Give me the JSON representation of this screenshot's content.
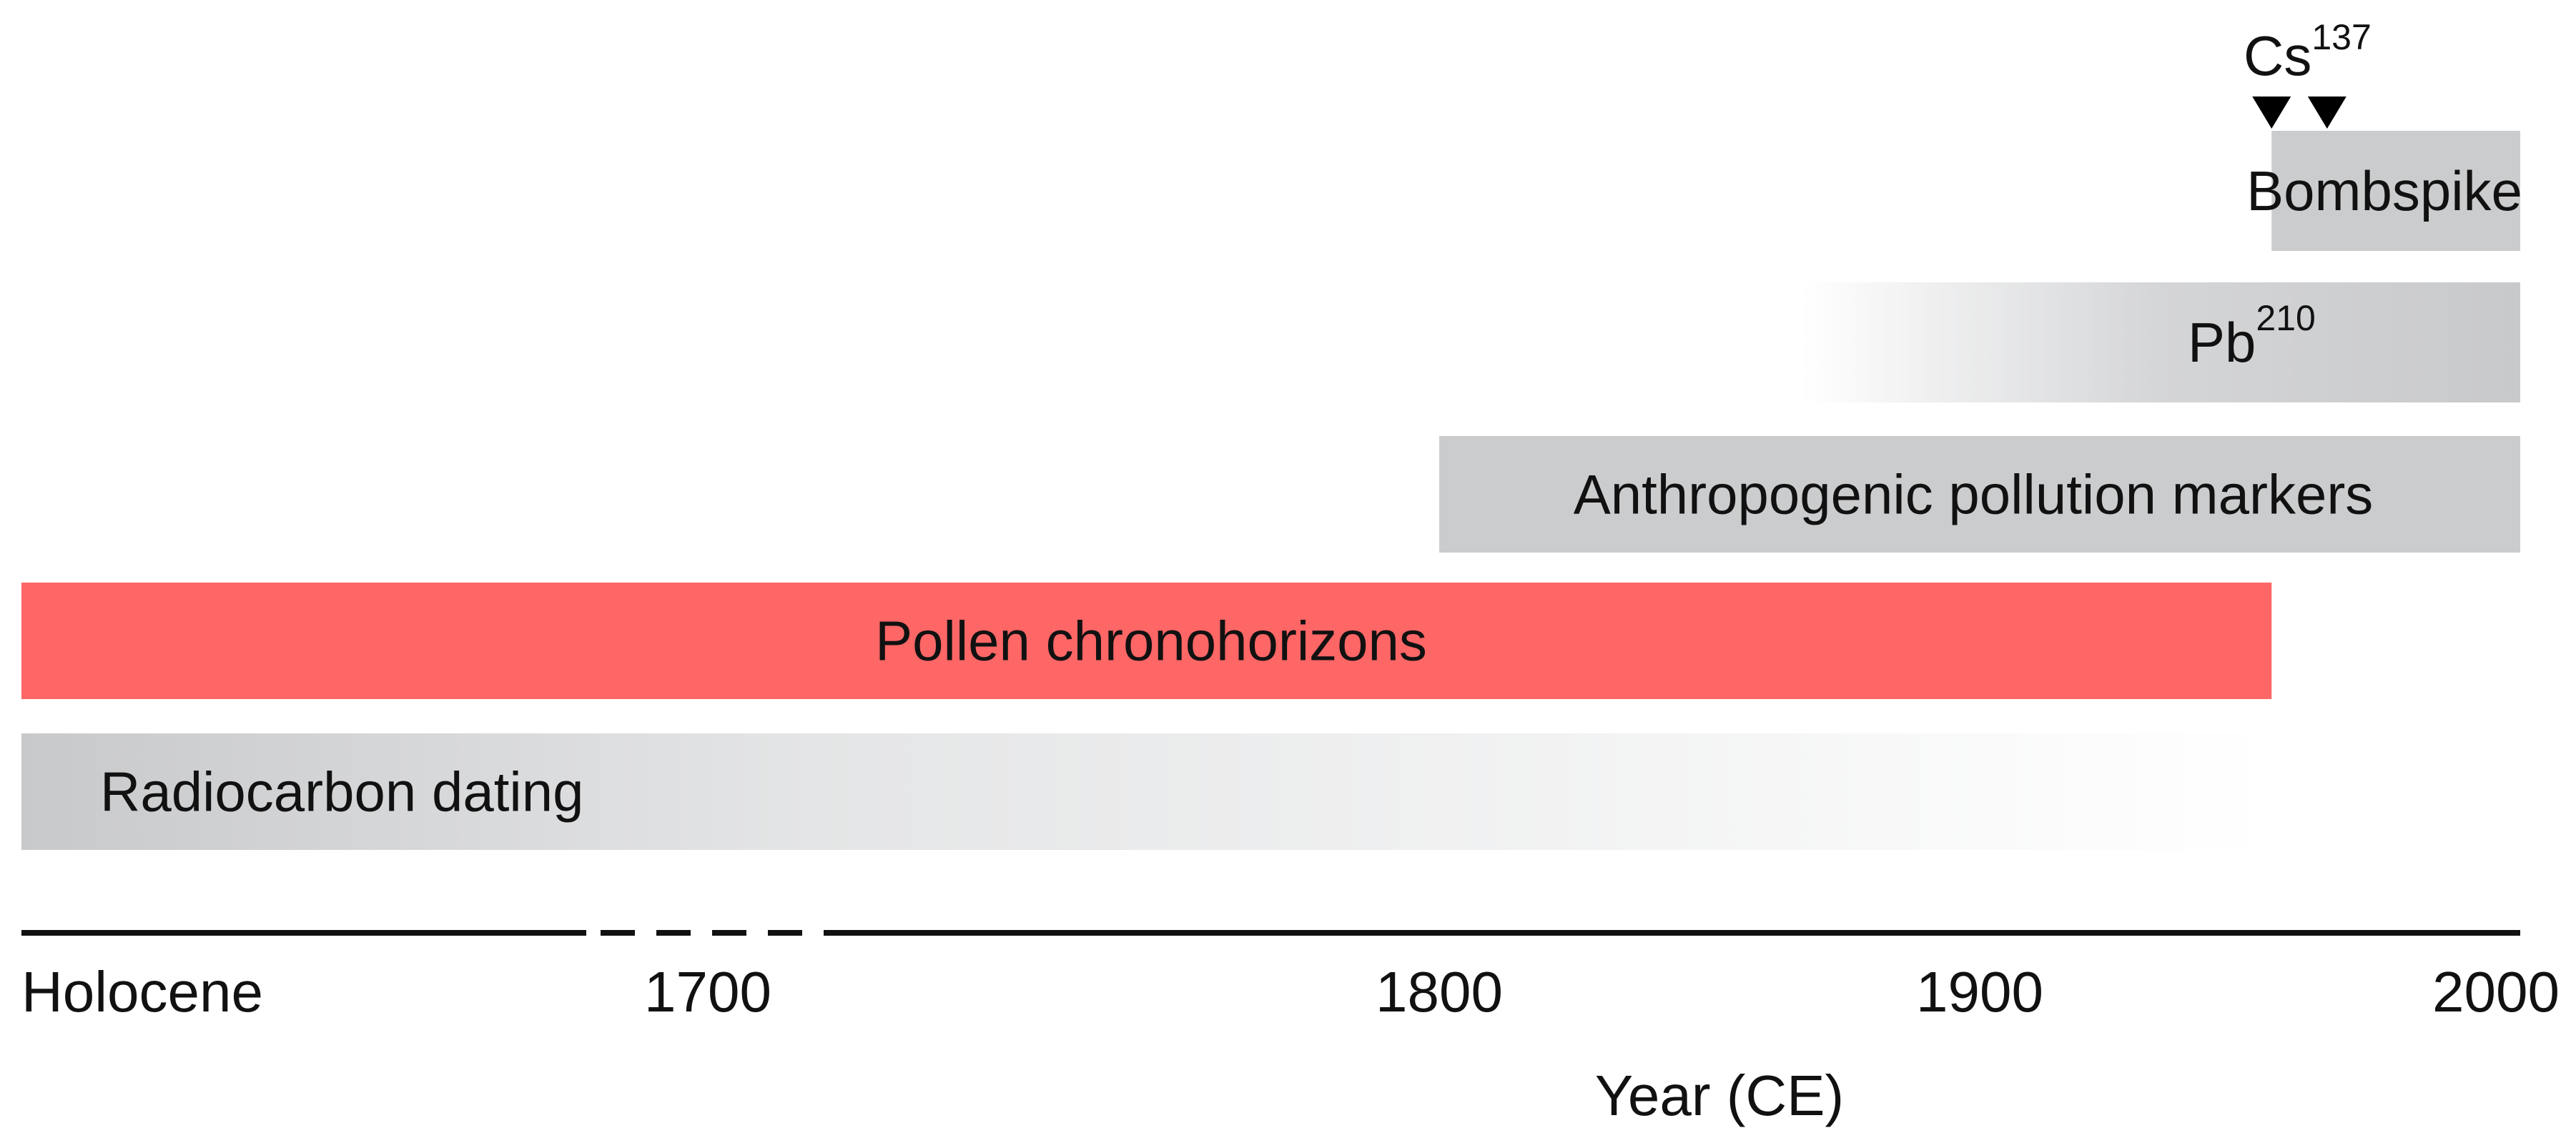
{
  "chart_data": {
    "type": "timeline",
    "xlabel": "Year (CE)",
    "axis": {
      "ticks": [
        {
          "value": "Holocene",
          "label": "Holocene"
        },
        {
          "value": 1700,
          "label": "1700"
        },
        {
          "value": 1800,
          "label": "1800"
        },
        {
          "value": 1900,
          "label": "1900"
        },
        {
          "value": 2000,
          "label": "2000"
        }
      ],
      "broken_segment": true
    },
    "ranges": [
      {
        "id": "radiocarbon",
        "label": "Radiocarbon dating",
        "sup": "",
        "start": "Holocene",
        "end": 1954,
        "fill": "gradient",
        "fade": "right",
        "color": "#c8c9cb"
      },
      {
        "id": "pollen",
        "label": "Pollen chronohorizons",
        "sup": "",
        "start": "Holocene",
        "end": 1954,
        "fill": "solid",
        "color": "#ff6666"
      },
      {
        "id": "anthropogenic",
        "label": "Anthropogenic pollution markers",
        "sup": "",
        "start": 1800,
        "end": 2000,
        "fill": "solid",
        "color": "#cbcccd"
      },
      {
        "id": "pb210",
        "label": "Pb",
        "sup": "210",
        "start": 1867,
        "end": 2000,
        "fill": "gradient",
        "fade": "left",
        "color": "#c8c9cb"
      },
      {
        "id": "bombspike",
        "label": "Bombspike",
        "sup": "",
        "start": 1954,
        "end": 2000,
        "fill": "solid",
        "color": "#cbcccd"
      }
    ],
    "markers": {
      "label": "Cs",
      "sup": "137",
      "years": [
        1954,
        1964
      ],
      "color": "#000000"
    }
  }
}
